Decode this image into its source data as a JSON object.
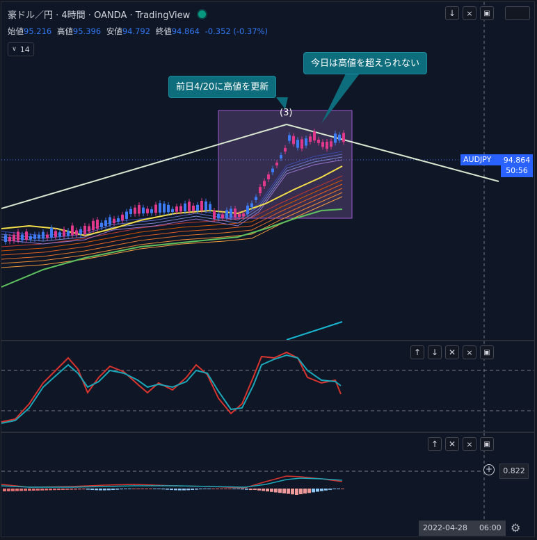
{
  "header": {
    "symbol_title": "豪ドル／円 · 4時間 · OANDA · TradingView",
    "ohlc": [
      {
        "label": "始値",
        "value": "95.216"
      },
      {
        "label": "高値",
        "value": "95.396"
      },
      {
        "label": "安値",
        "value": "94.792"
      },
      {
        "label": "終値",
        "value": "94.864"
      }
    ],
    "change": "-0.352 (-0.37%)",
    "indicator_count": "14"
  },
  "annotations": {
    "callout_left": "前日4/20に高値を更新",
    "callout_right": "今日は高値を超えられない",
    "wave_label": "(3)"
  },
  "price_axis": {
    "symbol": "AUDJPY",
    "last_price": "94.864",
    "countdown": "50:56"
  },
  "macd_pane": {
    "value": "0.822"
  },
  "time_axis": {
    "date": "2022-04-28",
    "time": "06:00"
  },
  "icons": {
    "scroll_down": "arrow-down-icon",
    "collapse": "collapse-icon",
    "maximize": "maximize-icon",
    "move_up": "arrow-up-icon",
    "close": "close-icon",
    "settings": "gear-icon"
  },
  "colors": {
    "background": "#0f1626",
    "candle_up": "#3d7cf5",
    "candle_down": "#e0398b",
    "ema_yellow": "#f5e04a",
    "ema_green": "#5fc25f",
    "trendline": "#d8e6d0",
    "channel_line": "#19b6d2",
    "callout": "#0e6d7d",
    "stoch_k": "#d8342e",
    "stoch_d": "#1ba7b8"
  }
}
